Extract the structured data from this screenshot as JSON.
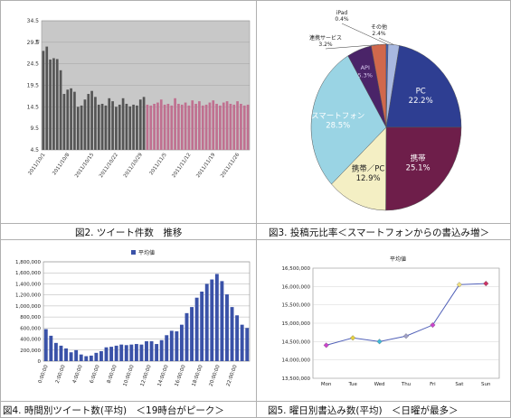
{
  "captions": {
    "fig2": "図2. ツイート件数　推移",
    "fig3": "図3. 投稿元比率＜スマートフォンからの書込み増＞",
    "fig4": "図4. 時間別ツイート数(平均)　＜19時台がピーク＞",
    "fig5": "図5. 曜日別書込み数(平均)　＜日曜が最多＞"
  },
  "chart_data": [
    {
      "id": "fig2",
      "type": "bar",
      "ylabel": "万",
      "ylim": [
        4.5,
        34.5
      ],
      "yticks": [
        "34.5",
        "29.5",
        "24.5",
        "19.5",
        "14.5",
        "9.5",
        "4.5"
      ],
      "xticks": [
        "2011/10/1",
        "2011/10/8",
        "2011/10/15",
        "2011/10/22",
        "2011/10/29",
        "2011/11/5",
        "2011/11/12",
        "2011/11/19",
        "2011/11/26"
      ],
      "series": [
        {
          "color": "#555555",
          "values": [
            27.5,
            28.5,
            25.5,
            25.8,
            25.6,
            23.0,
            17.5,
            18.5,
            18.8,
            18.0,
            14.5,
            14.8,
            16.2,
            17.5,
            18.2,
            16.8,
            15.0,
            15.2,
            14.8,
            16.5,
            15.8,
            14.5,
            15.0,
            16.5,
            15.2,
            14.6,
            15.0,
            14.8,
            16.2,
            16.8
          ]
        },
        {
          "color": "#c07090",
          "values": [
            15.0,
            14.8,
            15.2,
            15.5,
            16.2,
            15.0,
            15.2,
            14.8,
            16.5,
            15.2,
            15.0,
            15.5,
            14.8,
            16.0,
            15.2,
            15.8,
            14.8,
            15.0,
            15.5,
            16.0,
            15.2,
            14.8,
            15.5,
            15.8,
            15.2,
            15.0,
            15.8,
            15.2,
            14.8,
            15.0
          ]
        }
      ]
    },
    {
      "id": "fig3",
      "type": "pie",
      "slices": [
        {
          "label": "PC",
          "value": 22.2,
          "value_label": "22.2%",
          "color": "#2e3e92"
        },
        {
          "label": "携帯",
          "value": 25.1,
          "value_label": "25.1%",
          "color": "#6e1e4a"
        },
        {
          "label": "携帯／PC",
          "value": 12.9,
          "value_label": "12.9%",
          "color": "#f4efc4"
        },
        {
          "label": "スマートフォン",
          "value": 28.5,
          "value_label": "28.5%",
          "color": "#9ad4e4"
        },
        {
          "label": "API",
          "value": 5.3,
          "value_label": "5.3%",
          "color": "#4a2468"
        },
        {
          "label": "連携サービス",
          "value": 3.2,
          "value_label": "3.2%",
          "color": "#d0684c"
        },
        {
          "label": "iPad",
          "value": 0.4,
          "value_label": "0.4%",
          "color": "#3860c4"
        },
        {
          "label": "その他",
          "value": 2.4,
          "value_label": "2.4%",
          "color": "#a8b8e0"
        }
      ]
    },
    {
      "id": "fig4",
      "type": "bar",
      "ylim": [
        0,
        1800000
      ],
      "yticks": [
        "1,800,000",
        "1,600,000",
        "1,400,000",
        "1,200,000",
        "1,000,000",
        "800,000",
        "600,000",
        "400,000",
        "200,000",
        "0"
      ],
      "xticks": [
        "0:00:00",
        "2:00:00",
        "4:00:00",
        "6:00:00",
        "8:00:00",
        "10:00:00",
        "12:00:00",
        "14:00:00",
        "16:00:00",
        "18:00:00",
        "20:00:00",
        "22:00:00"
      ],
      "legend": "平均値",
      "color": "#3a52a8",
      "values": [
        580000,
        460000,
        330000,
        280000,
        230000,
        160000,
        200000,
        120000,
        90000,
        100000,
        150000,
        180000,
        250000,
        260000,
        280000,
        300000,
        290000,
        300000,
        310000,
        300000,
        360000,
        360000,
        310000,
        380000,
        470000,
        550000,
        540000,
        660000,
        870000,
        980000,
        1150000,
        1260000,
        1400000,
        1480000,
        1580000,
        1450000,
        1210000,
        980000,
        830000,
        660000,
        600000
      ]
    },
    {
      "id": "fig5",
      "type": "line",
      "title": "平均値",
      "categories": [
        "Mon",
        "Tue",
        "Wed",
        "Thu",
        "Fri",
        "Sat",
        "Sun"
      ],
      "values": [
        14400000,
        14600000,
        14500000,
        14650000,
        14950000,
        16050000,
        16080000
      ],
      "point_colors": [
        "#cc44cc",
        "#e6d040",
        "#40b8d8",
        "#a0a0c8",
        "#cc44cc",
        "#f0e080",
        "#cc3366"
      ],
      "ylim": [
        13500000,
        16500000
      ],
      "yticks": [
        "16,500,000",
        "16,000,000",
        "15,500,000",
        "15,000,000",
        "14,500,000",
        "14,000,000",
        "13,500,000"
      ]
    }
  ]
}
